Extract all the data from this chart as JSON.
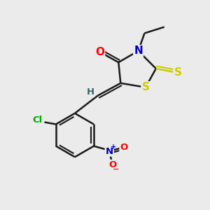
{
  "bg_color": "#ebebeb",
  "bond_color": "#1a1a1a",
  "bond_lw": 1.8,
  "atom_colors": {
    "O": "#ff0000",
    "N": "#0000cc",
    "S": "#cccc00",
    "Cl": "#00aa00",
    "H": "#336666",
    "C": "#1a1a1a"
  },
  "fs_large": 11,
  "fs_small": 9.5,
  "fs_charge": 7
}
